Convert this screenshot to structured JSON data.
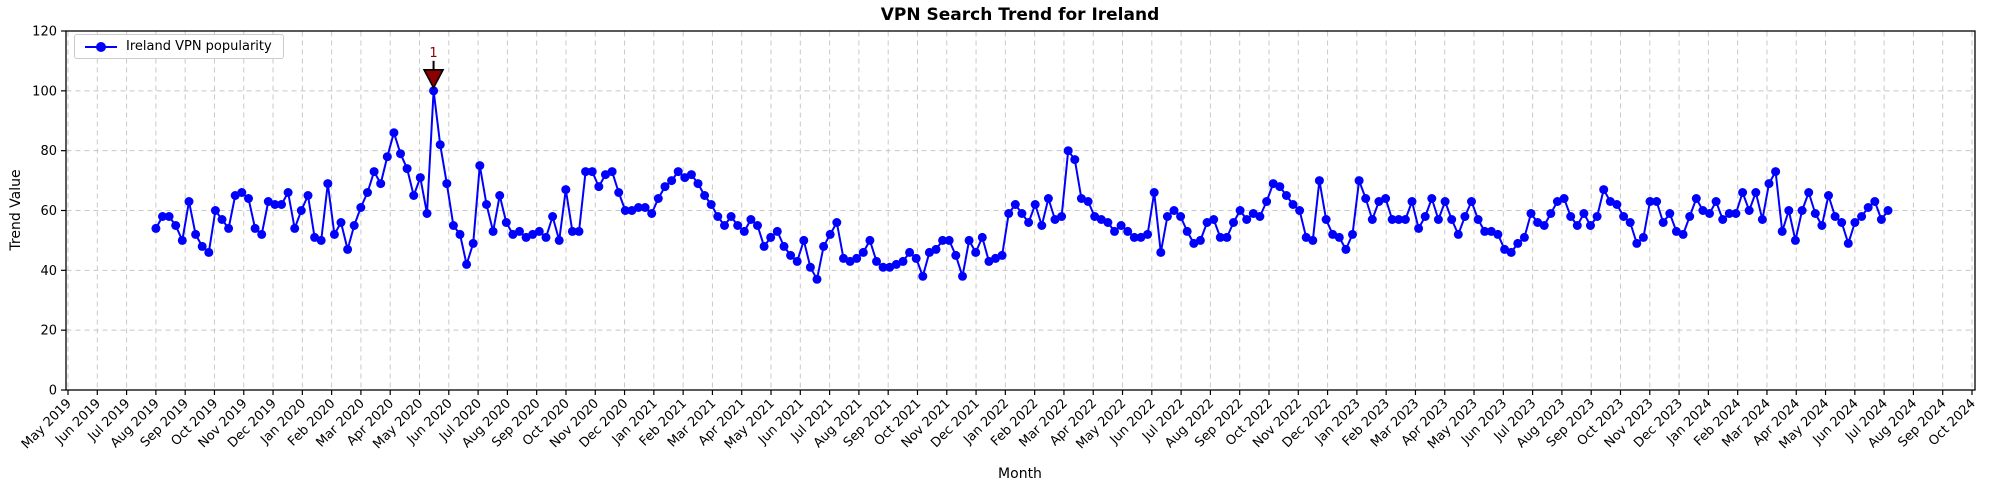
{
  "title": "VPN Search Trend for Ireland",
  "xlabel": "Month",
  "ylabel": "Trend Value",
  "legend": {
    "label": "Ireland VPN popularity"
  },
  "chart_data": {
    "type": "line",
    "series_name": "Ireland VPN popularity",
    "cadence": "weekly",
    "data_span": "Aug 2019 to Jul 2024",
    "line_color": "#0000ff",
    "marker": "circle",
    "grid": "dashed, both axes",
    "legend_position": "upper left",
    "ylim": [
      0,
      120
    ],
    "yticks": [
      0,
      20,
      40,
      60,
      80,
      100,
      120
    ],
    "x_tick_labels": [
      "May 2019",
      "Jun 2019",
      "Jul 2019",
      "Aug 2019",
      "Sep 2019",
      "Oct 2019",
      "Nov 2019",
      "Dec 2019",
      "Jan 2020",
      "Feb 2020",
      "Mar 2020",
      "Apr 2020",
      "May 2020",
      "Jun 2020",
      "Jul 2020",
      "Aug 2020",
      "Sep 2020",
      "Oct 2020",
      "Nov 2020",
      "Dec 2020",
      "Jan 2021",
      "Feb 2021",
      "Mar 2021",
      "Apr 2021",
      "May 2021",
      "Jun 2021",
      "Jul 2021",
      "Aug 2021",
      "Sep 2021",
      "Oct 2021",
      "Nov 2021",
      "Dec 2021",
      "Jan 2022",
      "Feb 2022",
      "Mar 2022",
      "Apr 2022",
      "May 2022",
      "Jun 2022",
      "Jul 2022",
      "Aug 2022",
      "Sep 2022",
      "Oct 2022",
      "Nov 2022",
      "Dec 2022",
      "Jan 2023",
      "Feb 2023",
      "Mar 2023",
      "Apr 2023",
      "May 2023",
      "Jun 2023",
      "Jul 2023",
      "Aug 2023",
      "Sep 2023",
      "Oct 2023",
      "Nov 2023",
      "Dec 2023",
      "Jan 2024",
      "Feb 2024",
      "Mar 2024",
      "Apr 2024",
      "May 2024",
      "Jun 2024",
      "Jul 2024",
      "Aug 2024",
      "Sep 2024",
      "Oct 2024"
    ],
    "values": [
      54,
      58,
      58,
      55,
      50,
      63,
      52,
      48,
      46,
      60,
      57,
      54,
      65,
      66,
      64,
      54,
      52,
      63,
      62,
      62,
      66,
      54,
      60,
      65,
      51,
      50,
      69,
      52,
      56,
      47,
      55,
      61,
      66,
      73,
      69,
      78,
      86,
      79,
      74,
      65,
      71,
      59,
      100,
      82,
      69,
      55,
      52,
      42,
      49,
      75,
      62,
      53,
      65,
      56,
      52,
      53,
      51,
      52,
      53,
      51,
      58,
      50,
      67,
      53,
      53,
      73,
      73,
      68,
      72,
      73,
      66,
      60,
      60,
      61,
      61,
      59,
      64,
      68,
      70,
      73,
      71,
      72,
      69,
      65,
      62,
      58,
      55,
      58,
      55,
      53,
      57,
      55,
      48,
      51,
      53,
      48,
      45,
      43,
      50,
      41,
      37,
      48,
      52,
      56,
      44,
      43,
      44,
      46,
      50,
      43,
      41,
      41,
      42,
      43,
      46,
      44,
      38,
      46,
      47,
      50,
      50,
      45,
      38,
      50,
      46,
      51,
      43,
      44,
      45,
      59,
      62,
      59,
      56,
      62,
      55,
      64,
      57,
      58,
      80,
      77,
      64,
      63,
      58,
      57,
      56,
      53,
      55,
      53,
      51,
      51,
      52,
      66,
      46,
      58,
      60,
      58,
      53,
      49,
      50,
      56,
      57,
      51,
      51,
      56,
      60,
      57,
      59,
      58,
      63,
      69,
      68,
      65,
      62,
      60,
      51,
      50,
      70,
      57,
      52,
      51,
      47,
      52,
      70,
      64,
      57,
      63,
      64,
      57,
      57,
      57,
      63,
      54,
      58,
      64,
      57,
      63,
      57,
      52,
      58,
      63,
      57,
      53,
      53,
      52,
      47,
      46,
      49,
      51,
      59,
      56,
      55,
      59,
      63,
      64,
      58,
      55,
      59,
      55,
      58,
      67,
      63,
      62,
      58,
      56,
      49,
      51,
      63,
      63,
      56,
      59,
      53,
      52,
      58,
      64,
      60,
      59,
      63,
      57,
      59,
      59,
      66,
      60,
      66,
      57,
      69,
      73,
      53,
      60,
      50,
      60,
      66,
      59,
      55,
      65,
      58,
      56,
      49,
      56,
      58,
      61,
      63,
      57,
      60
    ],
    "annotation": {
      "label": "1",
      "at_value": 100,
      "marker": "triangle-down",
      "fill": "#8b0000",
      "edge": "#000000",
      "text_color": "#8b0000"
    }
  },
  "style_colors": {
    "grid": "#c8c8c8",
    "spine": "#000000",
    "tick_text": "#000000",
    "background": "#ffffff"
  }
}
